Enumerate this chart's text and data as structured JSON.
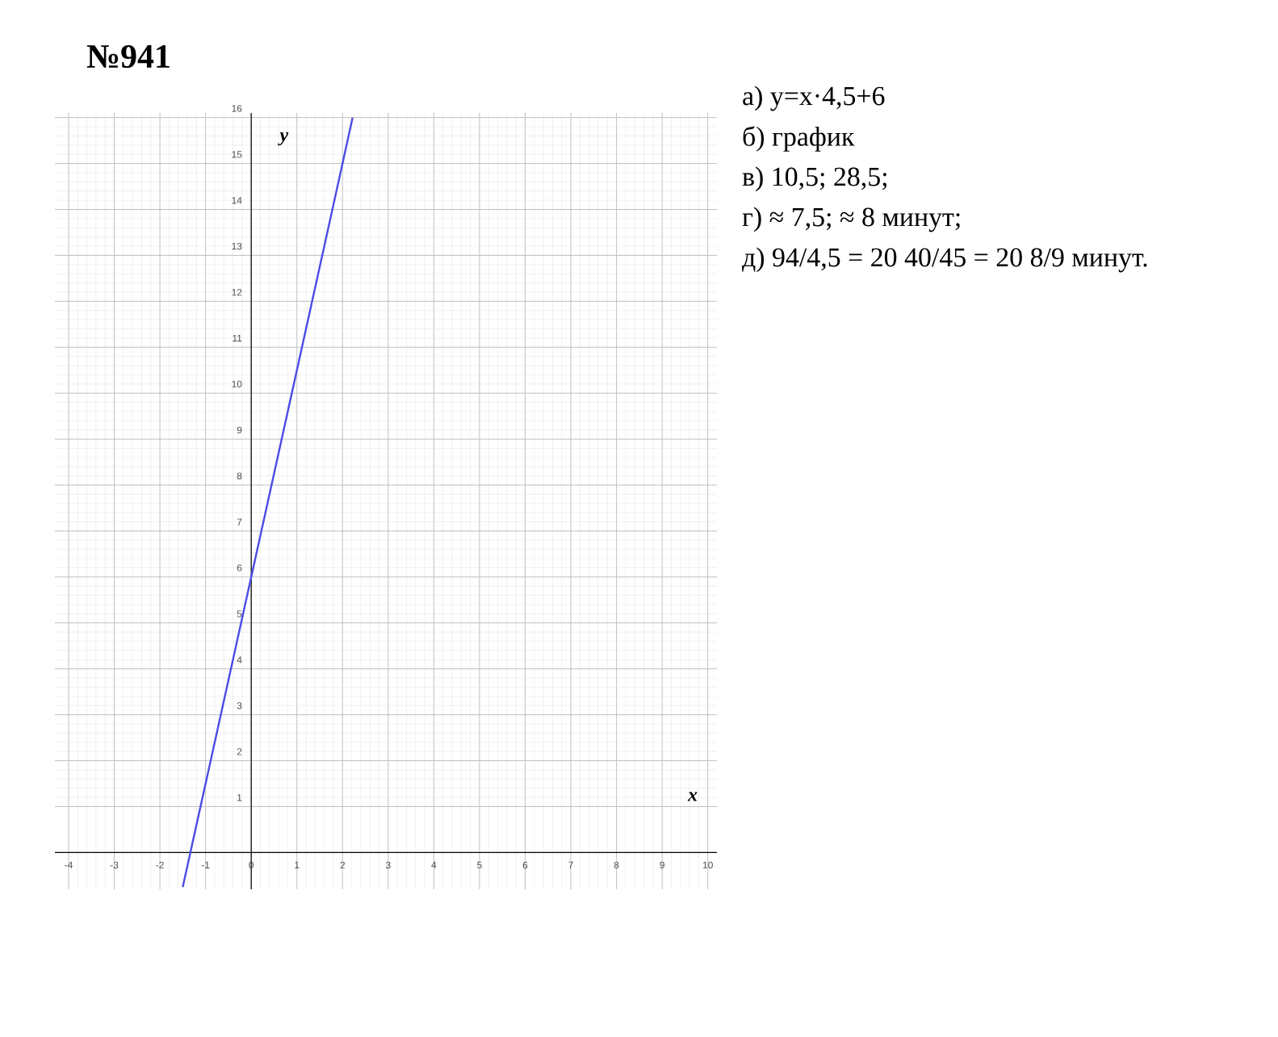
{
  "chart_data": {
    "type": "line",
    "title": "№941",
    "xlabel": "x",
    "ylabel": "y",
    "x": [
      -1.5,
      0,
      2,
      2.22
    ],
    "series": [
      {
        "color": "#4b4be6",
        "values": [
          -0.75,
          6,
          15,
          16
        ]
      }
    ],
    "xlim": [
      -4.3,
      10.2
    ],
    "ylim": [
      -0.8,
      16.1
    ],
    "xticks": [
      -4,
      -3,
      -2,
      -1,
      0,
      1,
      2,
      3,
      4,
      5,
      6,
      7,
      8,
      9,
      10
    ],
    "yticks": [
      1,
      2,
      3,
      4,
      5,
      6,
      7,
      8,
      9,
      10,
      11,
      12,
      13,
      14,
      15,
      16
    ],
    "grid": true,
    "marker": "none",
    "line_style": "solid",
    "annotations": [
      "а) y=x·4,5+6",
      "б) график",
      "в) 10,5; 28,5;",
      "г) ≈ 7,5; ≈ 8 минут;",
      "д) 94/4,5 = 20 40/45 = 20 8/9 минут."
    ]
  }
}
